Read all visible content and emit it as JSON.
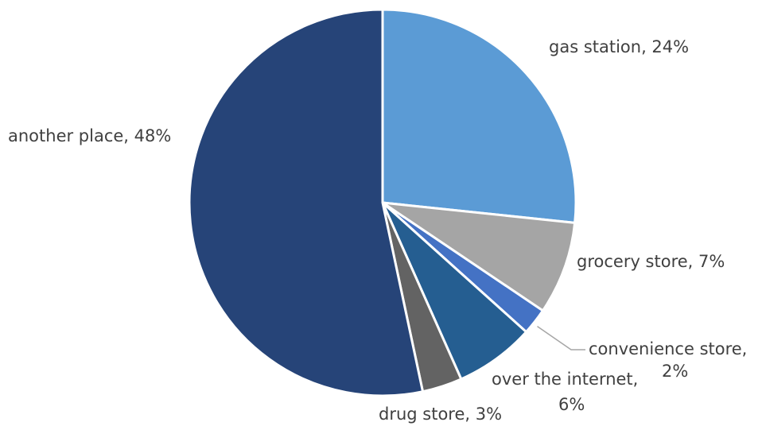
{
  "chart_data": {
    "type": "pie",
    "start_angle_deg": 0,
    "direction": "clockwise",
    "slices": [
      {
        "name": "gas station",
        "value": 24,
        "label": "gas station, 24%",
        "color": "#5b9bd5"
      },
      {
        "name": "grocery store",
        "value": 7,
        "label": "grocery store, 7%",
        "color": "#a5a5a5"
      },
      {
        "name": "convenience store",
        "value": 2,
        "label_lines": [
          "convenience store,",
          "2%"
        ],
        "color": "#4472c4"
      },
      {
        "name": "over the internet",
        "value": 6,
        "label_lines": [
          "over the internet,",
          "6%"
        ],
        "color": "#255e91"
      },
      {
        "name": "drug store",
        "value": 3,
        "label": "drug store, 3%",
        "color": "#636363"
      },
      {
        "name": "another place",
        "value": 48,
        "label": "another place, 48%",
        "color": "#264478"
      }
    ],
    "legend": "none"
  }
}
